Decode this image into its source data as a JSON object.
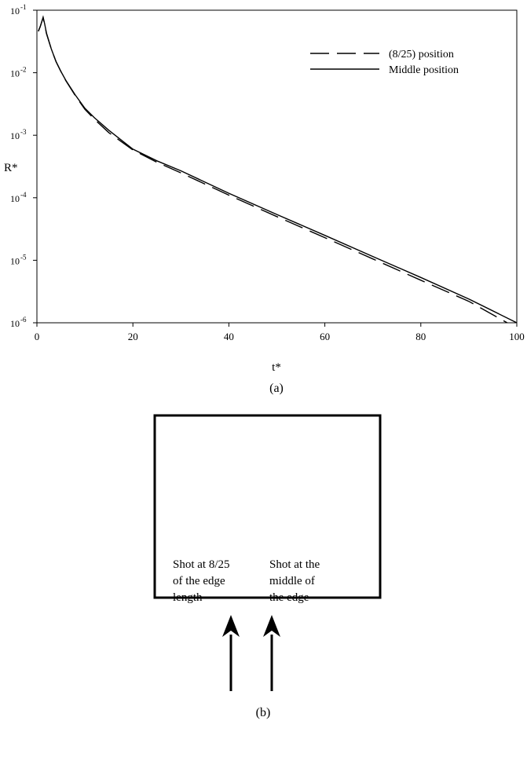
{
  "chart_data": {
    "type": "line",
    "title": "",
    "xlabel": "t*",
    "ylabel": "R*",
    "xlim": [
      0,
      100
    ],
    "ylim": [
      1e-06,
      0.1
    ],
    "yscale": "log",
    "grid": false,
    "legend_position": "top-right",
    "x_ticks": [
      {
        "value": 0,
        "label": "0"
      },
      {
        "value": 20,
        "label": "20"
      },
      {
        "value": 40,
        "label": "40"
      },
      {
        "value": 60,
        "label": "60"
      },
      {
        "value": 80,
        "label": "80"
      },
      {
        "value": 100,
        "label": "100"
      }
    ],
    "y_ticks": [
      {
        "value": 1e-06,
        "base": "10",
        "exp": "-6"
      },
      {
        "value": 1e-05,
        "base": "10",
        "exp": "-5"
      },
      {
        "value": 0.0001,
        "base": "10",
        "exp": "-4"
      },
      {
        "value": 0.001,
        "base": "10",
        "exp": "-3"
      },
      {
        "value": 0.01,
        "base": "10",
        "exp": "-2"
      },
      {
        "value": 0.1,
        "base": "10",
        "exp": "-1"
      }
    ],
    "series": [
      {
        "name": "(8/25) position",
        "style": "dashed",
        "color": "#000000",
        "x": [
          0.3,
          0.7,
          1.0,
          1.3,
          1.6,
          2.0,
          3,
          4,
          5,
          6,
          8,
          10,
          12,
          15,
          20,
          25,
          30,
          40,
          50,
          60,
          70,
          80,
          90,
          98
        ],
        "y": [
          0.046,
          0.055,
          0.065,
          0.076,
          0.06,
          0.042,
          0.024,
          0.015,
          0.0105,
          0.0075,
          0.0043,
          0.0026,
          0.0018,
          0.0011,
          0.00058,
          0.00037,
          0.00025,
          0.00011,
          5e-05,
          2.3e-05,
          1.05e-05,
          4.8e-06,
          2.2e-06,
          1e-06
        ]
      },
      {
        "name": "Middle position",
        "style": "solid",
        "color": "#000000",
        "x": [
          0.3,
          0.7,
          1.0,
          1.3,
          1.6,
          2.0,
          3,
          4,
          5,
          6,
          8,
          10,
          12,
          15,
          20,
          25,
          30,
          40,
          50,
          60,
          70,
          80,
          90,
          100
        ],
        "y": [
          0.046,
          0.055,
          0.065,
          0.077,
          0.061,
          0.043,
          0.024,
          0.015,
          0.0105,
          0.0076,
          0.0044,
          0.0027,
          0.0019,
          0.0012,
          0.0006,
          0.00039,
          0.00027,
          0.000118,
          5.4e-05,
          2.5e-05,
          1.15e-05,
          5.3e-06,
          2.4e-06,
          1e-06
        ]
      }
    ],
    "caption": "(a)"
  },
  "diagram": {
    "label_left": [
      "Shot at 8/25",
      "of the edge",
      "length"
    ],
    "label_right": [
      "Shot at the",
      "middle of",
      "the edge"
    ],
    "caption": "(b)"
  }
}
